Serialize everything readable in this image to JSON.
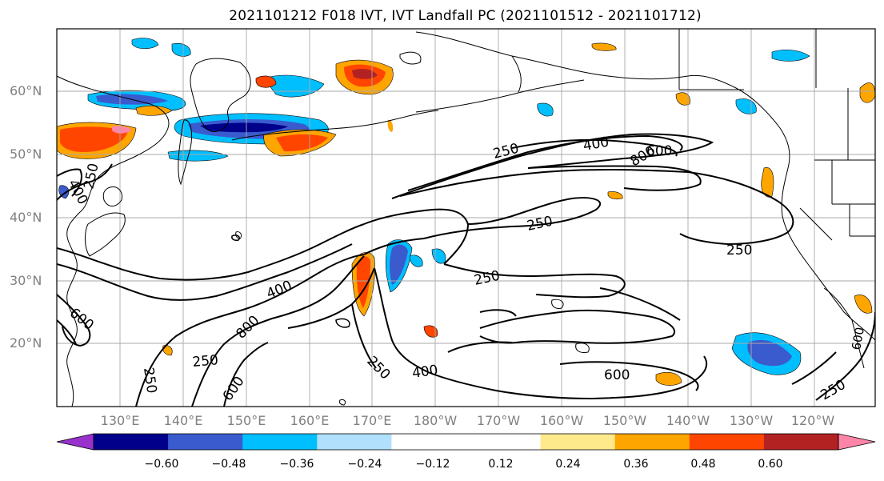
{
  "title": "2021101212 F018 IVT, IVT Landfall PC (2021101512 - 2021101712)",
  "lat_labels": [
    "60°N",
    "50°N",
    "40°N",
    "30°N",
    "20°N"
  ],
  "lon_labels": [
    "130°E",
    "140°E",
    "150°E",
    "160°E",
    "170°E",
    "180°W",
    "170°W",
    "160°W",
    "150°W",
    "140°W",
    "130°W",
    "120°W"
  ],
  "contour_labels": [
    {
      "text": "250",
      "kind": "ivt"
    },
    {
      "text": "400",
      "kind": "ivt"
    },
    {
      "text": "800",
      "kind": "ivt"
    },
    {
      "text": "600",
      "kind": "ivt"
    },
    {
      "text": "250",
      "kind": "ivt"
    },
    {
      "text": "400",
      "kind": "ivt"
    },
    {
      "text": "250",
      "kind": "ivt"
    },
    {
      "text": "250",
      "kind": "ivt"
    },
    {
      "text": "250",
      "kind": "ivt"
    },
    {
      "text": "400",
      "kind": "ivt"
    },
    {
      "text": "600",
      "kind": "ivt"
    },
    {
      "text": "800",
      "kind": "ivt"
    },
    {
      "text": "250",
      "kind": "ivt"
    },
    {
      "text": "250",
      "kind": "ivt"
    },
    {
      "text": "400",
      "kind": "ivt"
    },
    {
      "text": "600",
      "kind": "ivt"
    },
    {
      "text": "600",
      "kind": "ivt"
    },
    {
      "text": "250",
      "kind": "ivt"
    },
    {
      "text": "250",
      "kind": "ivt"
    },
    {
      "text": "600",
      "kind": "ivt"
    },
    {
      "text": "250",
      "kind": "ivt"
    },
    {
      "text": "250",
      "kind": "ivt"
    },
    {
      "text": "400",
      "kind": "ivt"
    }
  ],
  "colorbar": {
    "colors": [
      "#9932cc",
      "#00008b",
      "#3a5bcd",
      "#00bfff",
      "#b0e0fb",
      "#ffffff",
      "#ffffff",
      "#fee98b",
      "#ffa500",
      "#ff4500",
      "#b22222",
      "#ff85a8"
    ],
    "tick_labels": [
      "−0.60",
      "−0.48",
      "−0.36",
      "−0.24",
      "−0.12",
      "0.12",
      "0.24",
      "0.36",
      "0.48",
      "0.60"
    ]
  },
  "colors": {
    "grid": "#aaaaaa",
    "coast": "#000000",
    "contour": "#000000"
  }
}
